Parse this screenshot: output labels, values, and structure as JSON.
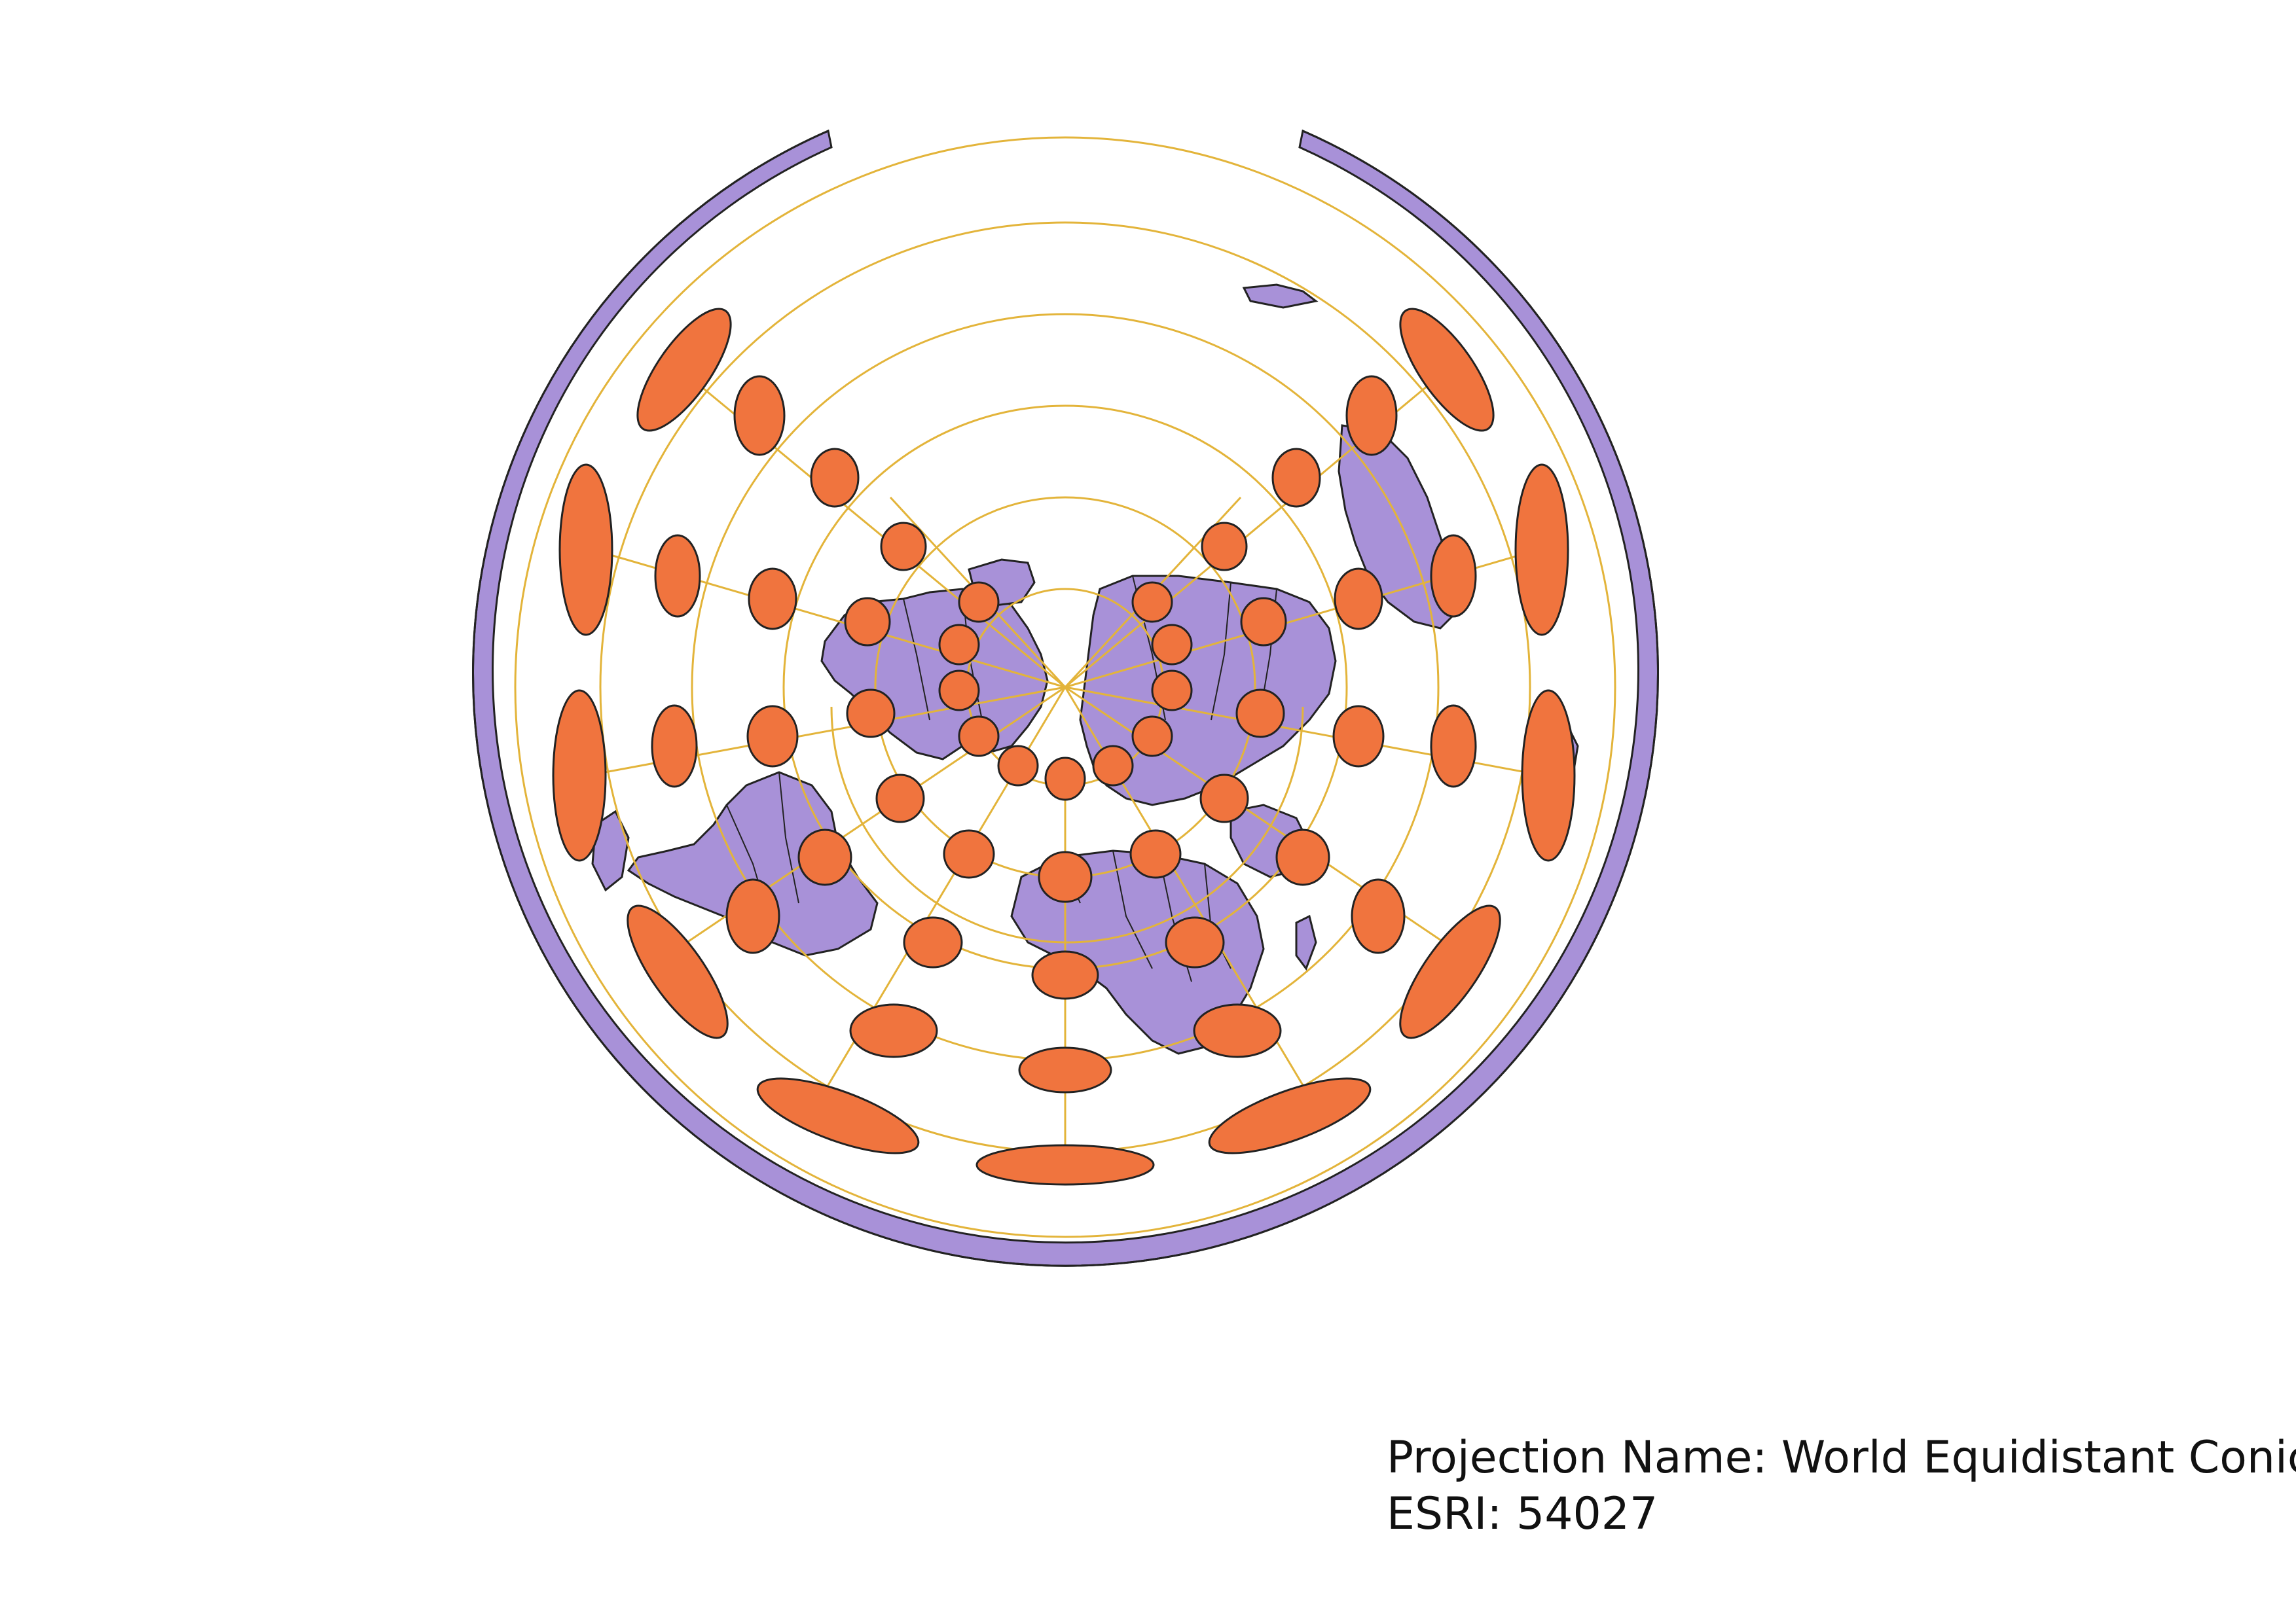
{
  "caption": {
    "projection_name": "Projection Name: World Equidistant Conic",
    "esri_code": "ESRI: 54027"
  },
  "colors": {
    "land": "#a891d8",
    "outline": "#222222",
    "ellipse_fill": "#f0743e",
    "graticule": "#e3b43a",
    "background": "#ffffff"
  },
  "map": {
    "projection": "World Equidistant Conic",
    "features": [
      "land",
      "country-borders",
      "graticule",
      "tissot-indicatrices"
    ]
  }
}
